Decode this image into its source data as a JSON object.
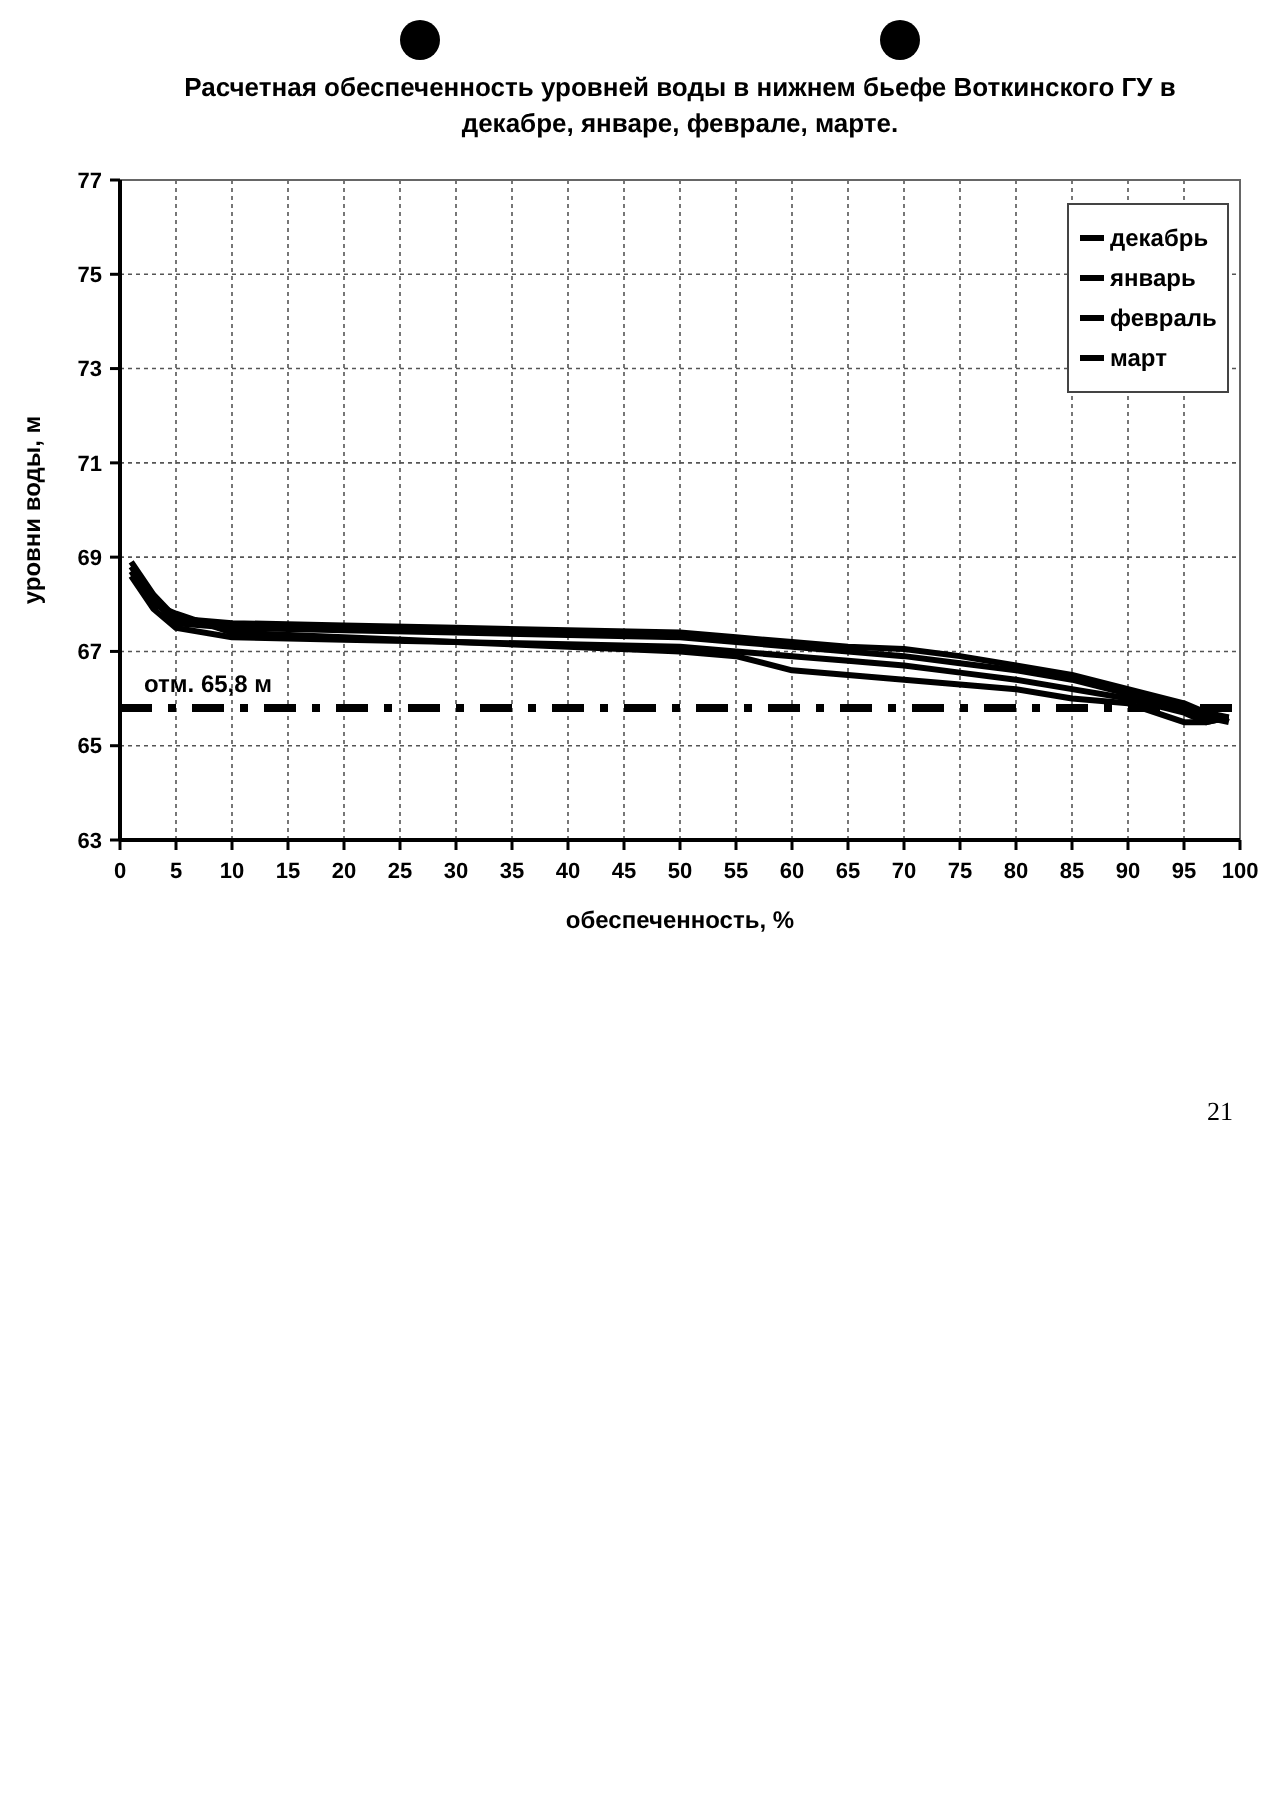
{
  "chart_data": {
    "type": "line",
    "title": "Расчетная обеспеченность уровней воды в нижнем бьефе Воткинского ГУ в декабре, январе, феврале, марте.",
    "xlabel": "обеспеченность, %",
    "ylabel": "уровни воды, м",
    "x": [
      1,
      3,
      5,
      10,
      20,
      30,
      40,
      50,
      55,
      60,
      65,
      70,
      75,
      80,
      85,
      90,
      95,
      97,
      99
    ],
    "series": [
      {
        "name": "декабрь",
        "color": "#000000",
        "values": [
          68.9,
          68.2,
          67.7,
          67.6,
          67.55,
          67.5,
          67.45,
          67.4,
          67.3,
          67.2,
          67.1,
          67.05,
          66.9,
          66.7,
          66.5,
          66.2,
          65.9,
          65.7,
          65.6
        ]
      },
      {
        "name": "январь",
        "color": "#000000",
        "values": [
          68.8,
          68.1,
          67.6,
          67.5,
          67.45,
          67.4,
          67.35,
          67.3,
          67.2,
          67.1,
          67.0,
          66.9,
          66.75,
          66.6,
          66.4,
          66.1,
          65.8,
          65.6,
          65.5
        ]
      },
      {
        "name": "февраль",
        "color": "#000000",
        "values": [
          68.7,
          68.0,
          67.8,
          67.4,
          67.3,
          67.2,
          67.15,
          67.1,
          67.0,
          66.9,
          66.8,
          66.7,
          66.55,
          66.4,
          66.2,
          66.0,
          65.7,
          65.5,
          65.6
        ]
      },
      {
        "name": "март",
        "color": "#000000",
        "values": [
          68.6,
          67.9,
          67.5,
          67.3,
          67.25,
          67.2,
          67.1,
          67.0,
          66.9,
          66.6,
          66.5,
          66.4,
          66.3,
          66.2,
          66.0,
          65.9,
          65.5,
          65.5,
          65.6
        ]
      }
    ],
    "xlim": [
      0,
      100
    ],
    "xticks": [
      0,
      5,
      10,
      15,
      20,
      25,
      30,
      35,
      40,
      45,
      50,
      55,
      60,
      65,
      70,
      75,
      80,
      85,
      90,
      95,
      100
    ],
    "ylim": [
      63,
      77
    ],
    "yticks": [
      63,
      65,
      67,
      69,
      71,
      73,
      75,
      77
    ],
    "grid": true,
    "legend": "top right",
    "line_style": "solid",
    "marker": "none",
    "ref_lines": [
      {
        "axis": "y",
        "value": 65.8,
        "label": "отм. 65,8 м",
        "color": "#000000",
        "line_style": "dashdot"
      }
    ],
    "annotations": [
      "21"
    ]
  }
}
